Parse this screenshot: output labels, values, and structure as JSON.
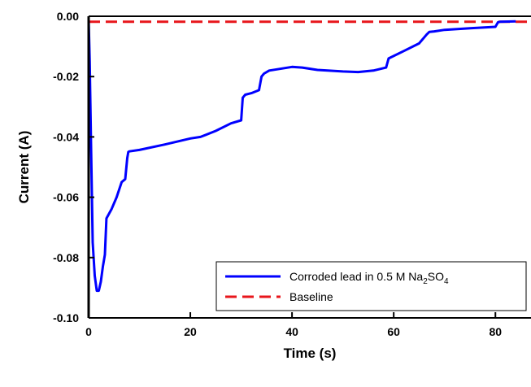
{
  "chart_data": {
    "type": "line",
    "title": "",
    "xlabel": "Time (s)",
    "ylabel": "Current (A)",
    "xlim": [
      0,
      87
    ],
    "ylim": [
      -0.1,
      0.0
    ],
    "xticks": [
      0,
      20,
      40,
      60,
      80
    ],
    "yticks": [
      0.0,
      -0.02,
      -0.04,
      -0.06,
      -0.08,
      -0.1
    ],
    "xtick_labels": [
      "0",
      "20",
      "40",
      "60",
      "80"
    ],
    "ytick_labels": [
      "0.00",
      "-0.02",
      "-0.04",
      "-0.06",
      "-0.08",
      "-0.10"
    ],
    "grid": false,
    "legend_position": "bottom-right",
    "series": [
      {
        "name": "Corroded lead in 0.5 M Na2SO4",
        "legend_main": "Corroded lead in 0.5 M Na",
        "legend_sub1": "2",
        "legend_mid": "SO",
        "legend_sub2": "4",
        "color": "#0000ff",
        "style": "solid",
        "x": [
          0.0,
          0.2,
          0.5,
          0.8,
          1.2,
          1.6,
          2.0,
          2.4,
          2.8,
          3.2,
          3.5,
          4.5,
          5.5,
          6.5,
          7.2,
          7.6,
          7.8,
          8.0,
          10.0,
          15.0,
          20.0,
          22.0,
          25.0,
          28.0,
          30.0,
          30.3,
          30.8,
          32.0,
          33.5,
          34.0,
          34.5,
          35.5,
          40.0,
          42.0,
          45.0,
          50.0,
          53.0,
          56.0,
          58.5,
          59.0,
          62.0,
          65.0,
          66.5,
          67.0,
          68.0,
          70.0,
          75.0,
          80.0,
          80.5,
          81.0,
          84.0
        ],
        "y": [
          -0.001,
          -0.015,
          -0.045,
          -0.075,
          -0.086,
          -0.091,
          -0.091,
          -0.088,
          -0.083,
          -0.079,
          -0.067,
          -0.064,
          -0.06,
          -0.055,
          -0.054,
          -0.047,
          -0.045,
          -0.0448,
          -0.0443,
          -0.0425,
          -0.0405,
          -0.04,
          -0.038,
          -0.0355,
          -0.0345,
          -0.027,
          -0.026,
          -0.0255,
          -0.0245,
          -0.02,
          -0.019,
          -0.018,
          -0.0168,
          -0.017,
          -0.0178,
          -0.0183,
          -0.0185,
          -0.018,
          -0.017,
          -0.014,
          -0.0115,
          -0.009,
          -0.006,
          -0.0052,
          -0.005,
          -0.0045,
          -0.004,
          -0.0035,
          -0.002,
          -0.0018,
          -0.0017
        ]
      },
      {
        "name": "Baseline",
        "color": "#e8161b",
        "style": "dashed",
        "x": [
          0,
          87
        ],
        "y": [
          -0.0018,
          -0.0018
        ]
      }
    ]
  }
}
